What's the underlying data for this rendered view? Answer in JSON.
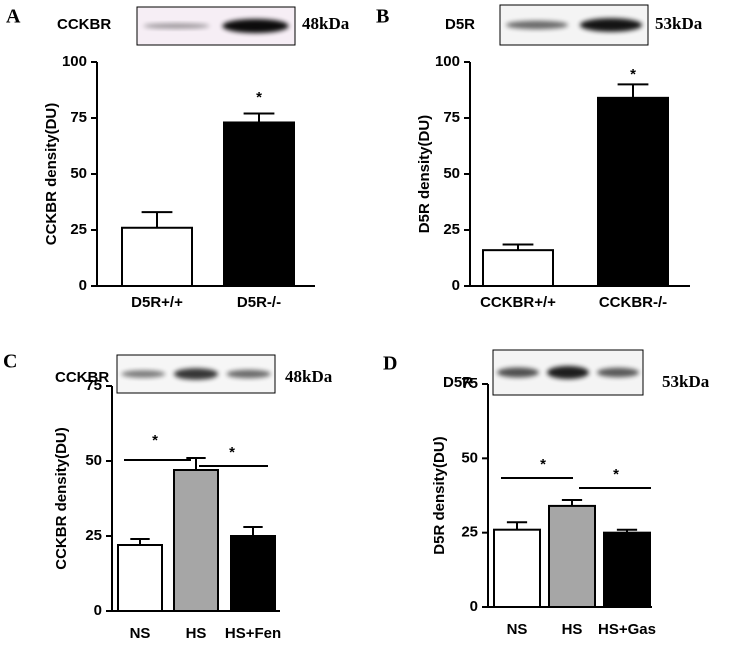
{
  "chart_data": [
    {
      "type": "bar",
      "panel": "A",
      "blot_label": "CCKBR",
      "blot_size": "48kDa",
      "y_label": "CCKBR density(DU)",
      "categories": [
        "D5R+/+",
        "D5R-/-"
      ],
      "values": [
        26,
        73
      ],
      "errors": [
        7,
        4
      ],
      "colors": [
        "#ffffff",
        "#000000"
      ],
      "ylim": [
        0,
        100
      ],
      "yticks": [
        0,
        25,
        50,
        75,
        100
      ],
      "annotations": [
        "*"
      ]
    },
    {
      "type": "bar",
      "panel": "B",
      "blot_label": "D5R",
      "blot_size": "53kDa",
      "y_label": "D5R density(DU)",
      "categories": [
        "CCKBR+/+",
        "CCKBR-/-"
      ],
      "values": [
        16,
        84
      ],
      "errors": [
        2.5,
        6
      ],
      "colors": [
        "#ffffff",
        "#000000"
      ],
      "ylim": [
        0,
        100
      ],
      "yticks": [
        0,
        25,
        50,
        75,
        100
      ],
      "annotations": [
        "*"
      ]
    },
    {
      "type": "bar",
      "panel": "C",
      "blot_label": "CCKBR",
      "blot_size": "48kDa",
      "y_label": "CCKBR density(DU)",
      "categories": [
        "NS",
        "HS",
        "HS+Fen"
      ],
      "values": [
        22,
        47,
        25
      ],
      "errors": [
        2,
        4,
        3
      ],
      "colors": [
        "#ffffff",
        "#a6a6a6",
        "#000000"
      ],
      "ylim": [
        0,
        75
      ],
      "yticks": [
        0,
        25,
        50,
        75
      ],
      "annotations": [
        "*",
        "*"
      ]
    },
    {
      "type": "bar",
      "panel": "D",
      "blot_label": "D5R",
      "blot_size": "53kDa",
      "y_label": "D5R density(DU)",
      "categories": [
        "NS",
        "HS",
        "HS+Gas"
      ],
      "values": [
        26,
        34,
        25
      ],
      "errors": [
        2.5,
        2,
        1
      ],
      "colors": [
        "#ffffff",
        "#a6a6a6",
        "#000000"
      ],
      "ylim": [
        0,
        75
      ],
      "yticks": [
        0,
        25,
        50,
        75
      ],
      "annotations": [
        "*",
        "*"
      ]
    }
  ]
}
